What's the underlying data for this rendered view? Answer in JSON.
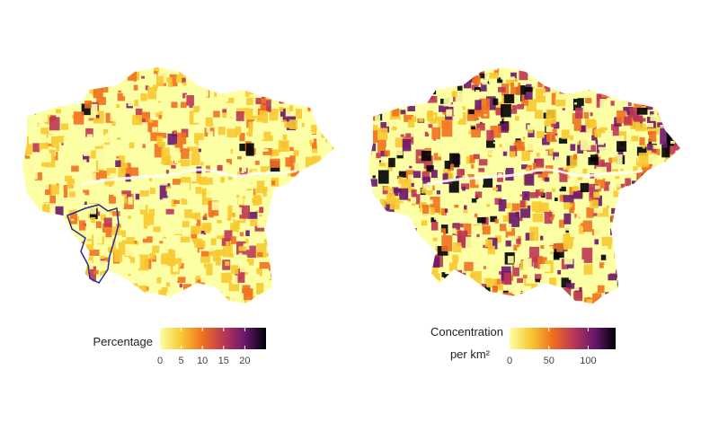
{
  "maps": [
    {
      "legend": {
        "title": "Percentage",
        "lim": [
          0,
          25
        ],
        "ticks": [
          0,
          5,
          10,
          15,
          20
        ],
        "colors": [
          "#fcffa4",
          "#f8c932",
          "#f1711f",
          "#bc3754",
          "#6a176e",
          "#000004"
        ]
      }
    },
    {
      "legend": {
        "title": "Concentration",
        "subtitle": "per km²",
        "lim": [
          0,
          135
        ],
        "ticks": [
          0,
          50,
          100
        ],
        "colors": [
          "#fcffa4",
          "#f8c932",
          "#f1711f",
          "#bc3754",
          "#6a176e",
          "#000004"
        ]
      }
    }
  ]
}
